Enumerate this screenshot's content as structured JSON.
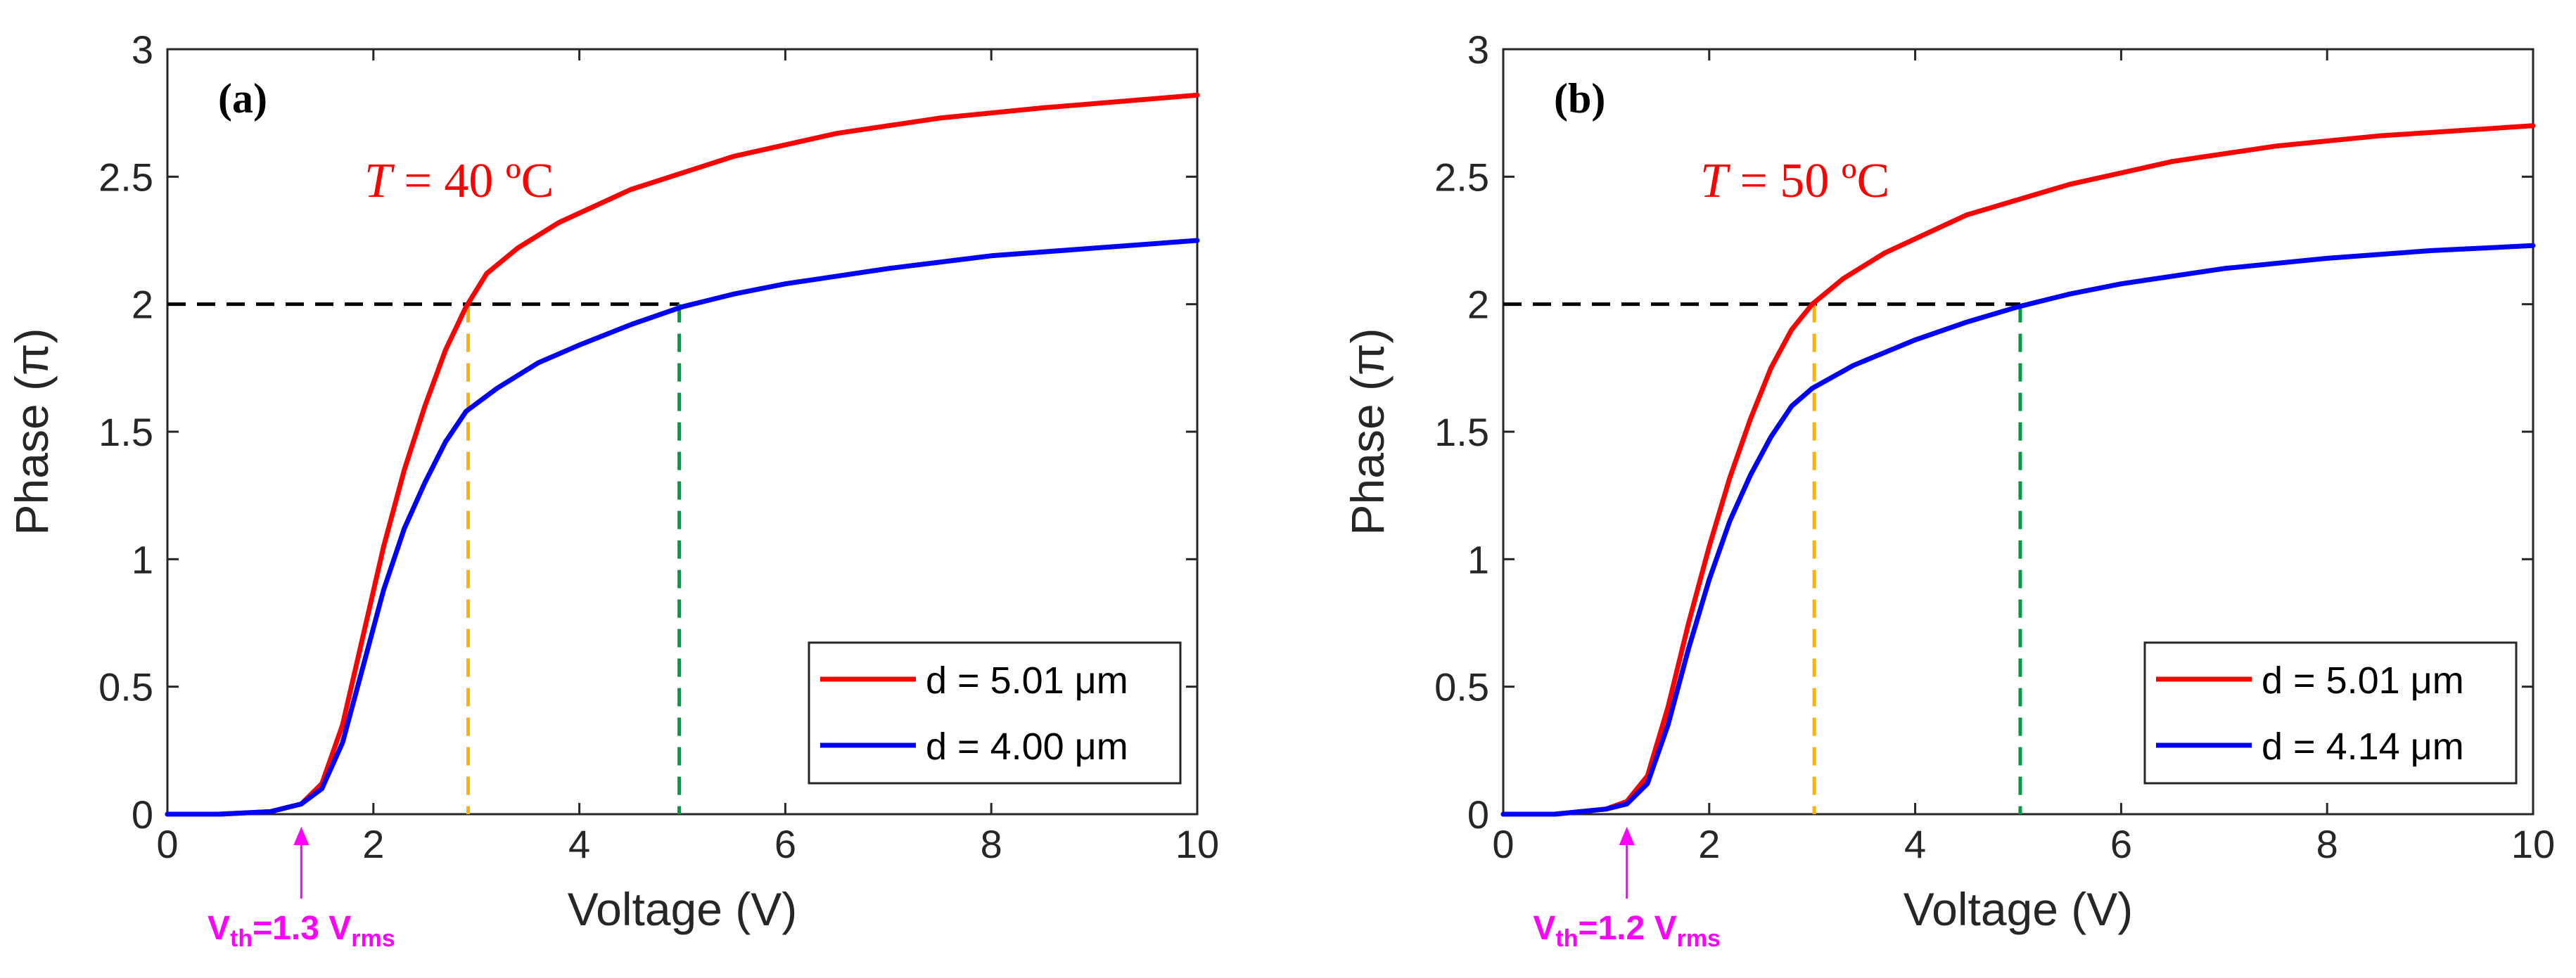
{
  "chart_data": [
    {
      "type": "line",
      "panel_label": "(a)",
      "annotation": {
        "symbol": "T",
        "value": " = 40 ºC"
      },
      "xlabel": "Voltage (V)",
      "ylabel": "Phase (π)",
      "xlim": [
        0,
        10
      ],
      "ylim": [
        0,
        3
      ],
      "xticks": [
        0,
        2,
        4,
        6,
        8,
        10
      ],
      "yticks": [
        0,
        0.5,
        1,
        1.5,
        2,
        2.5,
        3
      ],
      "xtick_labels": [
        "0",
        "2",
        "4",
        "6",
        "8",
        "10"
      ],
      "ytick_labels": [
        "0",
        "0.5",
        "1",
        "1.5",
        "2",
        "2.5",
        "3"
      ],
      "colors": {
        "red": "#ff0000",
        "blue": "#0000ff",
        "orange": "#ffb300",
        "green": "#009944",
        "black": "#000000",
        "arrow": "#ff00ff"
      },
      "series": [
        {
          "name": "d = 5.01 μm",
          "color": "#ff0000",
          "x": [
            0,
            0.5,
            1.0,
            1.3,
            1.5,
            1.7,
            1.9,
            2.1,
            2.3,
            2.5,
            2.7,
            2.9,
            3.1,
            3.4,
            3.8,
            4.5,
            5.5,
            6.5,
            7.5,
            8.5,
            10
          ],
          "y": [
            0,
            0,
            0.01,
            0.04,
            0.12,
            0.35,
            0.7,
            1.05,
            1.35,
            1.6,
            1.82,
            1.99,
            2.12,
            2.22,
            2.32,
            2.45,
            2.58,
            2.67,
            2.73,
            2.77,
            2.82
          ]
        },
        {
          "name": "d = 4.00 μm",
          "color": "#0000ff",
          "x": [
            0,
            0.5,
            1.0,
            1.3,
            1.5,
            1.7,
            1.9,
            2.1,
            2.3,
            2.5,
            2.7,
            2.9,
            3.2,
            3.6,
            4.0,
            4.5,
            5.0,
            5.5,
            6.0,
            7.0,
            8.0,
            9.0,
            10
          ],
          "y": [
            0,
            0,
            0.01,
            0.04,
            0.1,
            0.28,
            0.58,
            0.88,
            1.12,
            1.3,
            1.46,
            1.58,
            1.67,
            1.77,
            1.84,
            1.92,
            1.99,
            2.04,
            2.08,
            2.14,
            2.19,
            2.22,
            2.25
          ]
        }
      ],
      "reference_lines": {
        "phase_2pi": 2,
        "v_red": 2.92,
        "v_blue": 4.97
      },
      "threshold": {
        "x": 1.3,
        "text_main": "V",
        "text_sub1": "th",
        "text_mid": "=1.3 V",
        "text_sub2": "rms"
      }
    },
    {
      "type": "line",
      "panel_label": "(b)",
      "annotation": {
        "symbol": "T",
        "value": " = 50 ºC"
      },
      "xlabel": "Voltage (V)",
      "ylabel": "Phase (π)",
      "xlim": [
        0,
        10
      ],
      "ylim": [
        0,
        3
      ],
      "xticks": [
        0,
        2,
        4,
        6,
        8,
        10
      ],
      "yticks": [
        0,
        0.5,
        1,
        1.5,
        2,
        2.5,
        3
      ],
      "xtick_labels": [
        "0",
        "2",
        "4",
        "6",
        "8",
        "10"
      ],
      "ytick_labels": [
        "0",
        "0.5",
        "1",
        "1.5",
        "2",
        "2.5",
        "3"
      ],
      "colors": {
        "red": "#ff0000",
        "blue": "#0000ff",
        "orange": "#ffb300",
        "green": "#009944",
        "black": "#000000",
        "arrow": "#ff00ff"
      },
      "series": [
        {
          "name": "d = 5.01 μm",
          "color": "#ff0000",
          "x": [
            0,
            0.5,
            1.0,
            1.2,
            1.4,
            1.6,
            1.8,
            2.0,
            2.2,
            2.4,
            2.6,
            2.8,
            3.0,
            3.3,
            3.7,
            4.5,
            5.5,
            6.5,
            7.5,
            8.5,
            10
          ],
          "y": [
            0,
            0,
            0.02,
            0.05,
            0.15,
            0.42,
            0.75,
            1.05,
            1.32,
            1.55,
            1.75,
            1.9,
            2.0,
            2.1,
            2.2,
            2.35,
            2.47,
            2.56,
            2.62,
            2.66,
            2.7
          ]
        },
        {
          "name": "d = 4.14 μm",
          "color": "#0000ff",
          "x": [
            0,
            0.5,
            1.0,
            1.2,
            1.4,
            1.6,
            1.8,
            2.0,
            2.2,
            2.4,
            2.6,
            2.8,
            3.0,
            3.4,
            4.0,
            4.5,
            5.0,
            5.5,
            6.0,
            7.0,
            8.0,
            9.0,
            10
          ],
          "y": [
            0,
            0,
            0.02,
            0.04,
            0.12,
            0.35,
            0.65,
            0.92,
            1.15,
            1.33,
            1.48,
            1.6,
            1.67,
            1.76,
            1.86,
            1.93,
            1.99,
            2.04,
            2.08,
            2.14,
            2.18,
            2.21,
            2.23
          ]
        }
      ],
      "reference_lines": {
        "phase_2pi": 2,
        "v_red": 3.02,
        "v_blue": 5.02
      },
      "threshold": {
        "x": 1.2,
        "text_main": "V",
        "text_sub1": "th",
        "text_mid": "=1.2 V",
        "text_sub2": "rms"
      }
    }
  ]
}
